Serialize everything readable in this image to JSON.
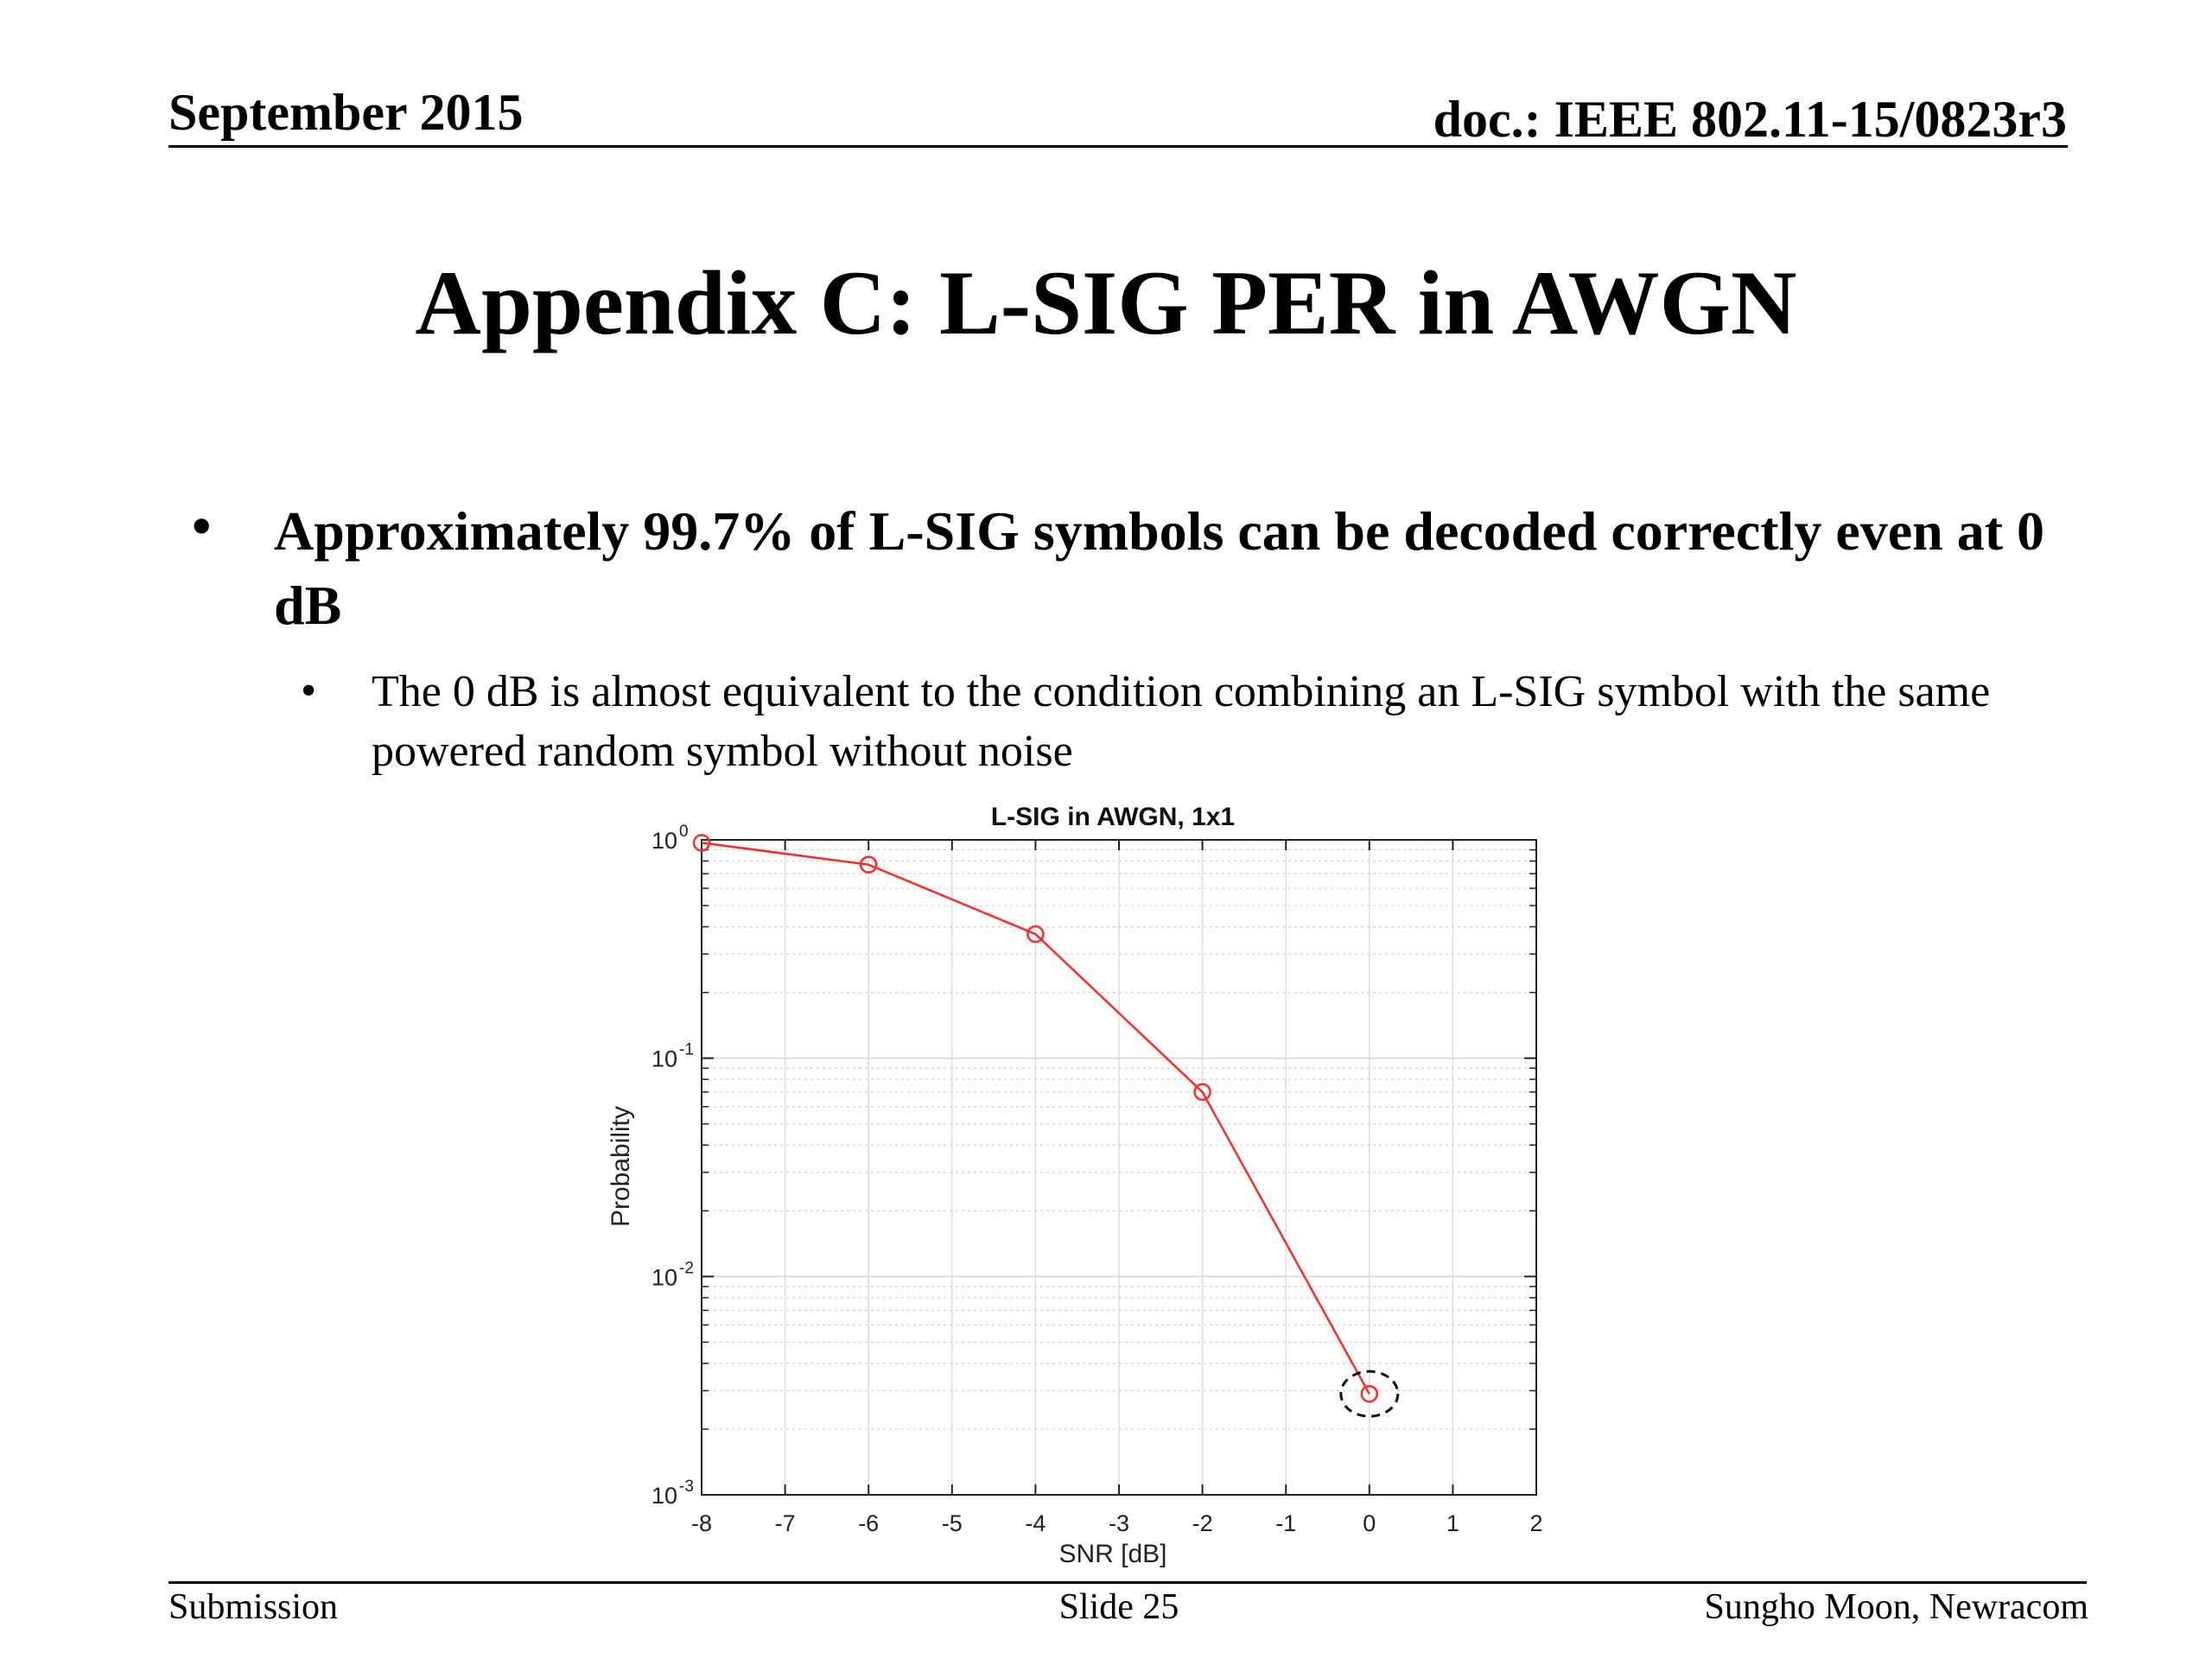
{
  "header": {
    "date": "September 2015",
    "doc": "doc.: IEEE 802.11-15/0823r3"
  },
  "slide": {
    "title": "Appendix C: L-SIG PER in AWGN",
    "bullet_marker": "•",
    "bullet_main": "Approximately 99.7% of L-SIG symbols can be decoded correctly even at 0 dB",
    "bullet_sub": "The 0 dB is almost equivalent to the condition combining an L-SIG symbol with the same powered random symbol without noise"
  },
  "footer": {
    "left": "Submission",
    "center": "Slide 25",
    "right": "Sungho Moon, Newracom"
  },
  "chart_data": {
    "type": "line",
    "title": "L-SIG in AWGN, 1x1",
    "xlabel": "SNR [dB]",
    "ylabel": "Probability",
    "y_scale": "log",
    "xlim": [
      -8,
      2
    ],
    "ylim": [
      0.001,
      1
    ],
    "grid": true,
    "x_ticks": [
      "-8",
      "-7",
      "-6",
      "-5",
      "-4",
      "-3",
      "-2",
      "-1",
      "0",
      "1",
      "2"
    ],
    "y_ticks": [
      {
        "base": "10",
        "exp": "0"
      },
      {
        "base": "10",
        "exp": "-1"
      },
      {
        "base": "10",
        "exp": "-2"
      },
      {
        "base": "10",
        "exp": "-3"
      }
    ],
    "series": [
      {
        "color": "#ff2a2a",
        "marker": "circle",
        "x": [
          -8,
          -6,
          -4,
          -2,
          0
        ],
        "y": [
          0.97,
          0.77,
          0.37,
          0.07,
          0.0029
        ]
      }
    ],
    "annotation": {
      "type": "dashed-circle",
      "x": 0,
      "y": 0.0029
    }
  }
}
